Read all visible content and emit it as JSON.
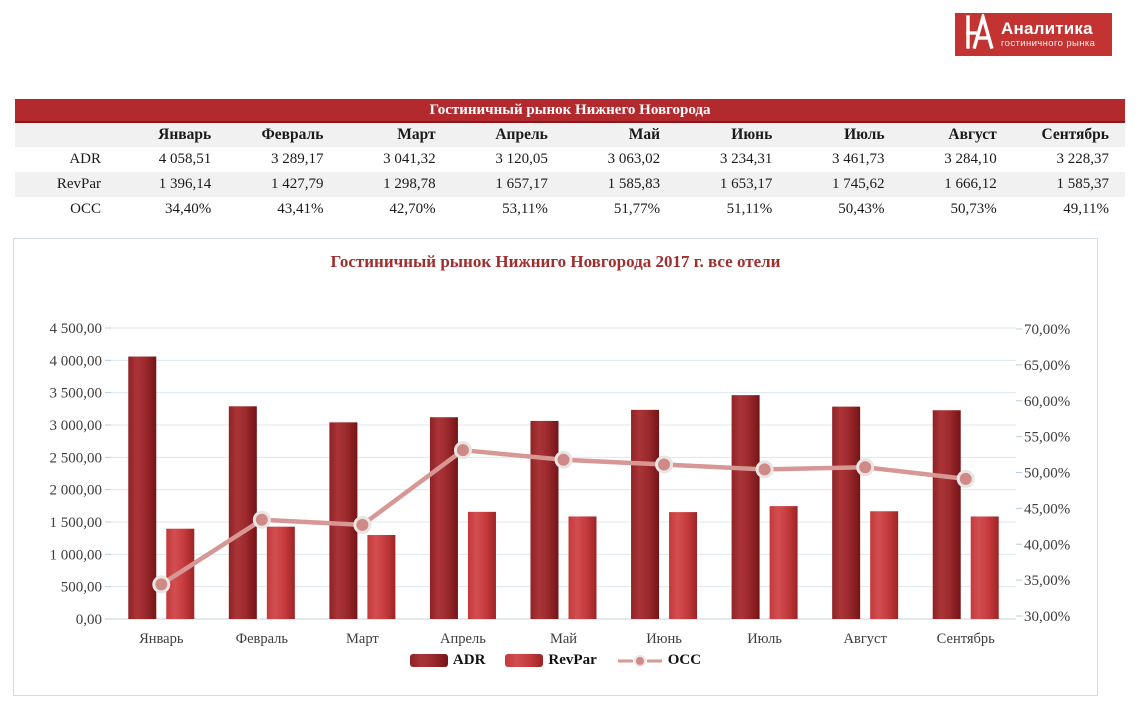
{
  "logo": {
    "title": "Аналитика",
    "subtitle": "гостиничного рынка",
    "brand_color": "#c23331"
  },
  "table": {
    "title": "Гостиничный рынок Нижнего Новгорода",
    "months": [
      "Январь",
      "Февраль",
      "Март",
      "Апрель",
      "Май",
      "Июнь",
      "Июль",
      "Август",
      "Сентябрь"
    ],
    "rows": [
      {
        "label": "ADR",
        "values": [
          "4 058,51",
          "3 289,17",
          "3 041,32",
          "3 120,05",
          "3 063,02",
          "3 234,31",
          "3 461,73",
          "3 284,10",
          "3 228,37"
        ]
      },
      {
        "label": "RevPar",
        "values": [
          "1 396,14",
          "1 427,79",
          "1 298,78",
          "1 657,17",
          "1 585,83",
          "1 653,17",
          "1 745,62",
          "1 666,12",
          "1 585,37"
        ]
      },
      {
        "label": "OCC",
        "values": [
          "34,40%",
          "43,41%",
          "42,70%",
          "53,11%",
          "51,77%",
          "51,11%",
          "50,43%",
          "50,73%",
          "49,11%"
        ]
      }
    ],
    "header_color": "#b32a2e"
  },
  "chart_data": {
    "type": "combo",
    "title": "Гостиничный рынок Нижниго Новгорода 2017 г. все отели",
    "categories": [
      "Январь",
      "Февраль",
      "Март",
      "Апрель",
      "Май",
      "Июнь",
      "Июль",
      "Август",
      "Сентябрь"
    ],
    "series": [
      {
        "name": "ADR",
        "type": "bar",
        "axis": "left",
        "values": [
          4058.51,
          3289.17,
          3041.32,
          3120.05,
          3063.02,
          3234.31,
          3461.73,
          3284.1,
          3228.37
        ]
      },
      {
        "name": "RevPar",
        "type": "bar",
        "axis": "left",
        "values": [
          1396.14,
          1427.79,
          1298.78,
          1657.17,
          1585.83,
          1653.17,
          1745.62,
          1666.12,
          1585.37
        ]
      },
      {
        "name": "OCC",
        "type": "line",
        "axis": "right",
        "values": [
          34.4,
          43.41,
          42.7,
          53.11,
          51.77,
          51.11,
          50.43,
          50.73,
          49.11
        ]
      }
    ],
    "left_axis": {
      "min": 0,
      "max": 4500,
      "step": 500,
      "tick_labels": [
        "0,00",
        "500,00",
        "1 000,00",
        "1 500,00",
        "2 000,00",
        "2 500,00",
        "3 000,00",
        "3 500,00",
        "4 000,00",
        "4 500,00"
      ]
    },
    "right_axis": {
      "min": 30,
      "max": 70,
      "step": 5,
      "tick_labels": [
        "30,00%",
        "35,00%",
        "40,00%",
        "45,00%",
        "50,00%",
        "55,00%",
        "60,00%",
        "65,00%",
        "70,00%"
      ]
    },
    "grid": true,
    "legend_position": "bottom",
    "legend": [
      "ADR",
      "RevPar",
      "OCC"
    ],
    "colors": {
      "adr": "#9c2a2d",
      "revpar": "#c43a3c",
      "occ": "#d79794",
      "occ_marker": "#cf8a88",
      "grid": "#dce7f1",
      "axis_line": "#c2d1e0",
      "title": "#a02e2e"
    }
  }
}
